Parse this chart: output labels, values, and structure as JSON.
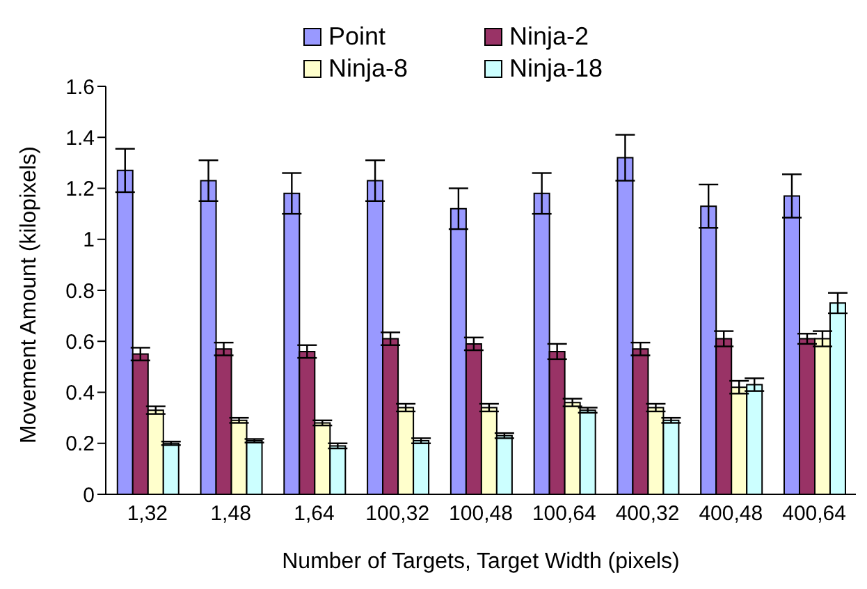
{
  "chart_data": {
    "type": "bar",
    "xlabel": "Number of Targets, Target Width (pixels)",
    "ylabel": "Movement Amount (kilopixels)",
    "categories": [
      "1,32",
      "1,48",
      "1,64",
      "100,32",
      "100,48",
      "100,64",
      "400,32",
      "400,48",
      "400,64"
    ],
    "series": [
      {
        "name": "Point",
        "color": "#9999ff",
        "values": [
          1.27,
          1.23,
          1.18,
          1.23,
          1.12,
          1.18,
          1.32,
          1.13,
          1.17
        ],
        "errors": [
          0.085,
          0.08,
          0.08,
          0.08,
          0.08,
          0.08,
          0.09,
          0.085,
          0.085
        ]
      },
      {
        "name": "Ninja-2",
        "color": "#993366",
        "values": [
          0.55,
          0.57,
          0.56,
          0.61,
          0.59,
          0.56,
          0.57,
          0.61,
          0.61
        ],
        "errors": [
          0.025,
          0.025,
          0.025,
          0.025,
          0.025,
          0.03,
          0.025,
          0.03,
          0.02
        ]
      },
      {
        "name": "Ninja-8",
        "color": "#ffffcc",
        "values": [
          0.33,
          0.29,
          0.28,
          0.34,
          0.34,
          0.36,
          0.34,
          0.42,
          0.61
        ],
        "errors": [
          0.015,
          0.01,
          0.01,
          0.015,
          0.015,
          0.015,
          0.015,
          0.025,
          0.03
        ]
      },
      {
        "name": "Ninja-18",
        "color": "#ccffff",
        "values": [
          0.2,
          0.21,
          0.19,
          0.21,
          0.23,
          0.33,
          0.29,
          0.43,
          0.75
        ],
        "errors": [
          0.007,
          0.007,
          0.01,
          0.01,
          0.01,
          0.01,
          0.01,
          0.025,
          0.04
        ]
      }
    ],
    "ylim": [
      0,
      1.6
    ],
    "yticks": [
      0,
      0.2,
      0.4,
      0.6,
      0.8,
      1,
      1.2,
      1.4,
      1.6
    ],
    "grid": false,
    "legend": "top"
  }
}
